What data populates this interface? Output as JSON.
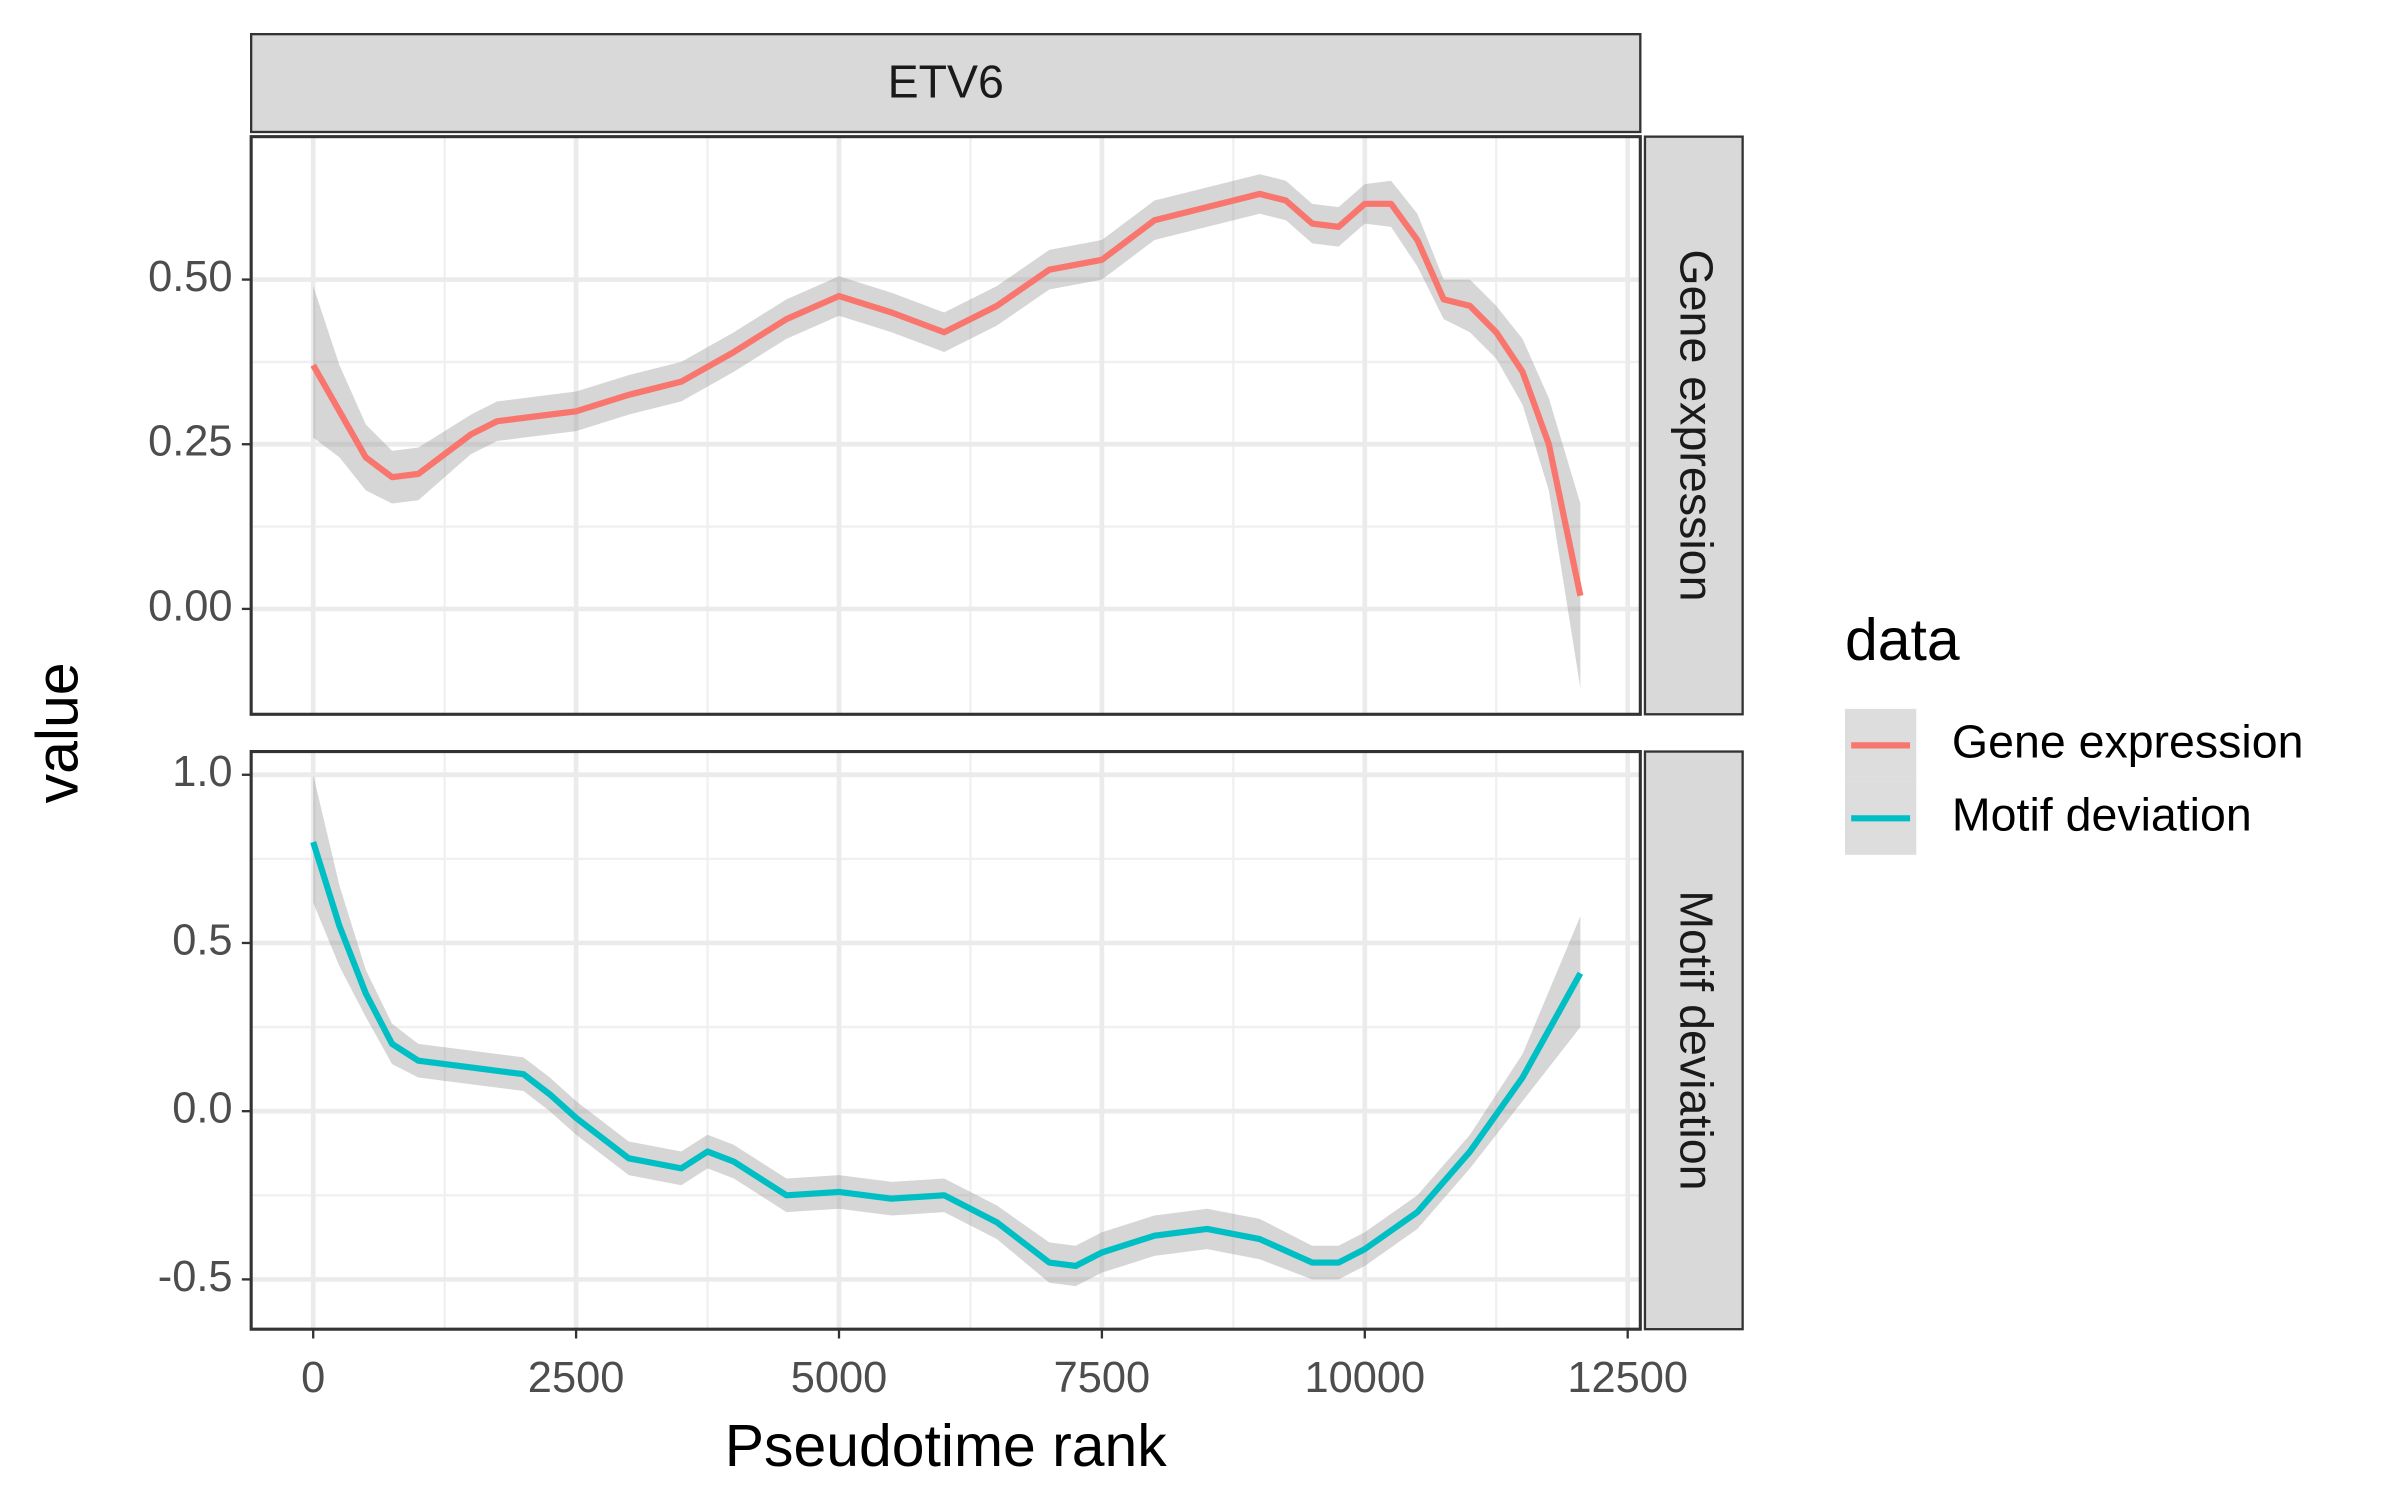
{
  "chart_data": {
    "type": "line",
    "facet": "ETV6",
    "xlabel": "Pseudotime rank",
    "ylabel": "value",
    "legend_title": "data",
    "grid": true,
    "xlim": [
      -590,
      12620
    ],
    "xticks": [
      0,
      2500,
      5000,
      7500,
      10000,
      12500
    ],
    "series": [
      {
        "name": "Gene expression",
        "color": "#f8766d",
        "ylim": [
          -0.16,
          0.717
        ],
        "yticks": [
          {
            "value": 0,
            "label": "0.00"
          },
          {
            "value": 0.25,
            "label": "0.25"
          },
          {
            "value": 0.5,
            "label": "0.50"
          }
        ],
        "x": [
          0,
          250,
          500,
          750,
          1000,
          1250,
          1500,
          1750,
          2000,
          2500,
          3000,
          3500,
          4000,
          4500,
          5000,
          5500,
          6000,
          6500,
          7000,
          7500,
          8000,
          8500,
          9000,
          9250,
          9500,
          9750,
          10000,
          10250,
          10500,
          10750,
          11000,
          11250,
          11500,
          11750,
          12050
        ],
        "values": [
          0.37,
          0.3,
          0.23,
          0.2,
          0.205,
          0.235,
          0.265,
          0.285,
          0.29,
          0.3,
          0.325,
          0.345,
          0.39,
          0.44,
          0.475,
          0.45,
          0.42,
          0.46,
          0.515,
          0.53,
          0.59,
          0.61,
          0.63,
          0.62,
          0.585,
          0.58,
          0.615,
          0.615,
          0.56,
          0.47,
          0.46,
          0.42,
          0.36,
          0.25,
          0.02
        ],
        "lower": [
          0.26,
          0.23,
          0.18,
          0.16,
          0.165,
          0.2,
          0.235,
          0.255,
          0.26,
          0.27,
          0.295,
          0.315,
          0.36,
          0.41,
          0.445,
          0.42,
          0.39,
          0.43,
          0.485,
          0.5,
          0.56,
          0.58,
          0.6,
          0.59,
          0.555,
          0.55,
          0.585,
          0.58,
          0.52,
          0.44,
          0.42,
          0.38,
          0.31,
          0.18,
          -0.12
        ],
        "upper": [
          0.49,
          0.37,
          0.28,
          0.24,
          0.245,
          0.27,
          0.295,
          0.315,
          0.32,
          0.33,
          0.355,
          0.375,
          0.42,
          0.47,
          0.505,
          0.48,
          0.45,
          0.49,
          0.545,
          0.56,
          0.62,
          0.64,
          0.66,
          0.65,
          0.615,
          0.61,
          0.645,
          0.65,
          0.6,
          0.5,
          0.5,
          0.46,
          0.41,
          0.32,
          0.16
        ]
      },
      {
        "name": "Motif deviation",
        "color": "#00bfc4",
        "ylim": [
          -0.648,
          1.069
        ],
        "yticks": [
          {
            "value": -0.5,
            "label": "-0.5"
          },
          {
            "value": 0,
            "label": "0.0"
          },
          {
            "value": 0.5,
            "label": "0.5"
          },
          {
            "value": 1,
            "label": "1.0"
          }
        ],
        "x": [
          0,
          250,
          500,
          750,
          1000,
          1500,
          2000,
          2250,
          2500,
          3000,
          3500,
          3750,
          4000,
          4500,
          5000,
          5500,
          6000,
          6500,
          7000,
          7250,
          7500,
          8000,
          8500,
          9000,
          9500,
          9750,
          10000,
          10500,
          11000,
          11500,
          12050
        ],
        "values": [
          0.8,
          0.55,
          0.35,
          0.2,
          0.15,
          0.13,
          0.11,
          0.05,
          -0.02,
          -0.14,
          -0.17,
          -0.12,
          -0.15,
          -0.25,
          -0.24,
          -0.26,
          -0.25,
          -0.33,
          -0.45,
          -0.46,
          -0.42,
          -0.37,
          -0.35,
          -0.38,
          -0.45,
          -0.45,
          -0.41,
          -0.3,
          -0.12,
          0.1,
          0.41
        ],
        "lower": [
          0.62,
          0.43,
          0.28,
          0.14,
          0.1,
          0.08,
          0.06,
          0.0,
          -0.07,
          -0.19,
          -0.22,
          -0.17,
          -0.2,
          -0.3,
          -0.29,
          -0.31,
          -0.3,
          -0.38,
          -0.51,
          -0.52,
          -0.48,
          -0.43,
          -0.41,
          -0.44,
          -0.5,
          -0.5,
          -0.46,
          -0.35,
          -0.17,
          0.03,
          0.25
        ],
        "upper": [
          1.0,
          0.67,
          0.42,
          0.26,
          0.2,
          0.18,
          0.16,
          0.1,
          0.03,
          -0.09,
          -0.12,
          -0.07,
          -0.1,
          -0.2,
          -0.19,
          -0.21,
          -0.2,
          -0.28,
          -0.39,
          -0.4,
          -0.36,
          -0.31,
          -0.29,
          -0.32,
          -0.4,
          -0.4,
          -0.36,
          -0.25,
          -0.07,
          0.17,
          0.58
        ]
      }
    ]
  }
}
